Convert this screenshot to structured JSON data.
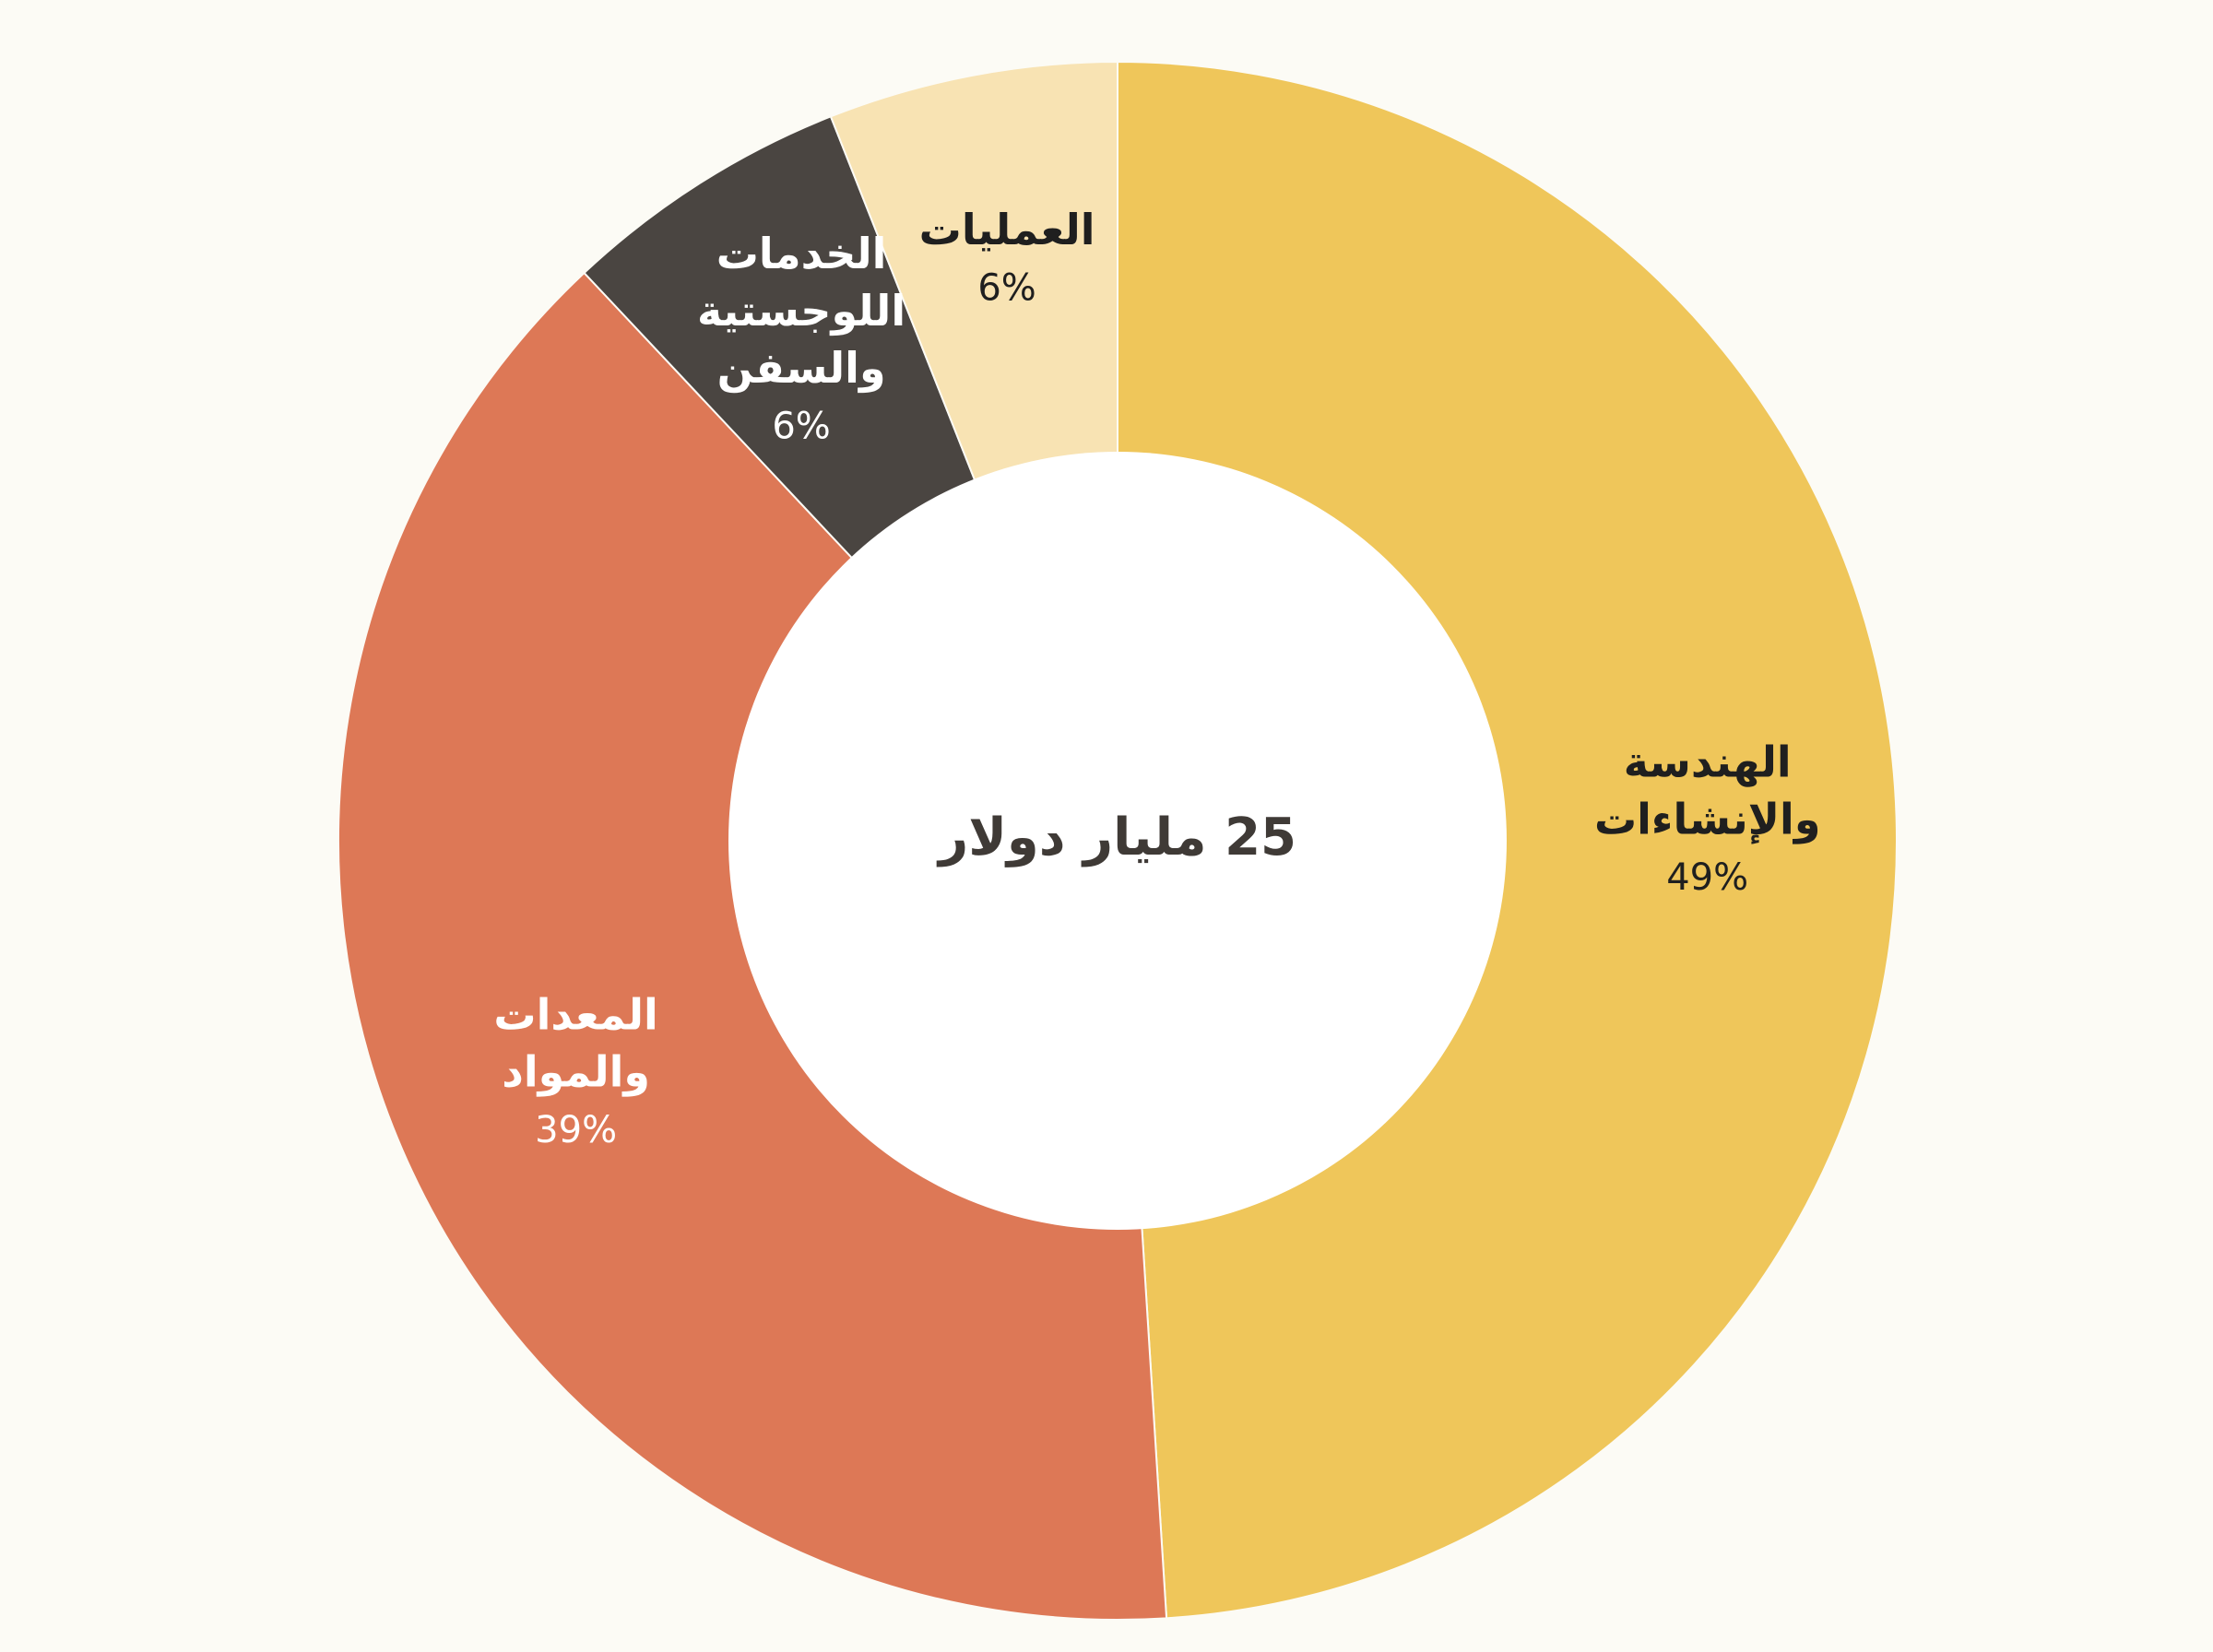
{
  "chart_data": {
    "type": "pie",
    "variant": "donut",
    "center_label": "25 مليار دولار",
    "slices": [
      {
        "label_lines": [
          "الهندسة",
          "والإنشاءات"
        ],
        "value": 49,
        "value_label": "49%",
        "color": "#EFC65A",
        "label_color": "#1F1F1F"
      },
      {
        "label_lines": [
          "المعدات",
          "والمواد"
        ],
        "value": 39,
        "value_label": "39%",
        "color": "#DD7856",
        "label_color": "#FFFFFF"
      },
      {
        "label_lines": [
          "الخدمات",
          "اللوجستية",
          "والسفن"
        ],
        "value": 6,
        "value_label": "6%",
        "color": "#4A4541",
        "label_color": "#FFFFFF"
      },
      {
        "label_lines": [
          "العمليات"
        ],
        "value": 6,
        "value_label": "6%",
        "color": "#F8E3B3",
        "label_color": "#1F1F1F"
      }
    ],
    "background_color": "#FCFBF5",
    "hole_color": "#FFFFFF",
    "center_label_color": "#3F3A36",
    "legend": "none",
    "grid": false
  }
}
